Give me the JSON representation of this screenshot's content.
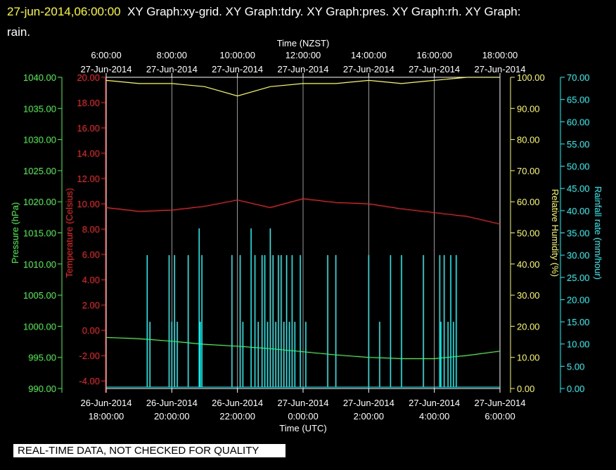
{
  "header": {
    "timestamp": "27-jun-2014,06:00:00",
    "line1": "XY Graph:xy-grid.  XY Graph:tdry.  XY Graph:pres.  XY Graph:rh.  XY Graph:",
    "line2": "rain."
  },
  "footer": {
    "notice": "REAL-TIME DATA, NOT CHECKED FOR QUALITY"
  },
  "colors": {
    "pressure": "#33ff33",
    "temperature": "#ff1a1a",
    "humidity": "#ffff33",
    "rainfall": "#00ffff",
    "grid": "#ffffff",
    "background": "#000000"
  },
  "chart_data": {
    "type": "line",
    "grid": true,
    "top_axis": {
      "title": "Time (NZST)",
      "ticks": [
        {
          "time": "6:00:00",
          "date": "27-Jun-2014"
        },
        {
          "time": "8:00:00",
          "date": "27-Jun-2014"
        },
        {
          "time": "10:00:00",
          "date": "27-Jun-2014"
        },
        {
          "time": "12:00:00",
          "date": "27-Jun-2014"
        },
        {
          "time": "14:00:00",
          "date": "27-Jun-2014"
        },
        {
          "time": "16:00:00",
          "date": "27-Jun-2014"
        },
        {
          "time": "18:00:00",
          "date": "27-Jun-2014"
        }
      ]
    },
    "bottom_axis": {
      "title": "Time (UTC)",
      "range": [
        "2014-06-26 18:00",
        "2014-06-27 06:00"
      ],
      "ticks": [
        {
          "date": "26-Jun-2014",
          "time": "18:00:00"
        },
        {
          "date": "26-Jun-2014",
          "time": "20:00:00"
        },
        {
          "date": "26-Jun-2014",
          "time": "22:00:00"
        },
        {
          "date": "27-Jun-2014",
          "time": "0:00:00"
        },
        {
          "date": "27-Jun-2014",
          "time": "2:00:00"
        },
        {
          "date": "27-Jun-2014",
          "time": "4:00:00"
        },
        {
          "date": "27-Jun-2014",
          "time": "6:00:00"
        }
      ]
    },
    "axes": {
      "pressure": {
        "label": "Pressure (hPa)",
        "range": [
          990,
          1040
        ],
        "ticks": [
          "990.00",
          "995.00",
          "1000.00",
          "1005.00",
          "1010.00",
          "1015.00",
          "1020.00",
          "1025.00",
          "1030.00",
          "1035.00",
          "1040.00"
        ]
      },
      "temperature": {
        "label": "Temperature (Celsius)",
        "range": [
          -4.6,
          20
        ],
        "ticks": [
          "-4.00",
          "-2.00",
          "0.00",
          "2.00",
          "4.00",
          "6.00",
          "8.00",
          "10.00",
          "12.00",
          "14.00",
          "16.00",
          "18.00",
          "20.00"
        ]
      },
      "humidity": {
        "label": "Relative Humidity (%)",
        "range": [
          0,
          100
        ],
        "ticks": [
          "0.00",
          "10.00",
          "20.00",
          "30.00",
          "40.00",
          "50.00",
          "60.00",
          "70.00",
          "80.00",
          "90.00",
          "100.00"
        ]
      },
      "rainfall": {
        "label": "Rainfall rate (mm/hour)",
        "range": [
          0,
          70
        ],
        "ticks": [
          "0.00",
          "5.00",
          "10.00",
          "15.00",
          "20.00",
          "25.00",
          "30.00",
          "35.00",
          "40.00",
          "45.00",
          "50.00",
          "55.00",
          "60.00",
          "65.00",
          "70.00"
        ]
      }
    },
    "series": [
      {
        "name": "pres",
        "axis": "pressure",
        "x": [
          "2014-06-26 18:00",
          "2014-06-26 19:00",
          "2014-06-26 20:00",
          "2014-06-26 21:00",
          "2014-06-26 22:00",
          "2014-06-26 23:00",
          "2014-06-27 00:00",
          "2014-06-27 01:00",
          "2014-06-27 02:00",
          "2014-06-27 03:00",
          "2014-06-27 04:00",
          "2014-06-27 05:00",
          "2014-06-27 06:00"
        ],
        "values": [
          998.2,
          998.0,
          997.6,
          997.1,
          996.8,
          996.4,
          995.9,
          995.4,
          995.0,
          994.8,
          994.8,
          995.3,
          996.0
        ]
      },
      {
        "name": "tdry",
        "axis": "temperature",
        "x": [
          "2014-06-26 18:00",
          "2014-06-26 19:00",
          "2014-06-26 20:00",
          "2014-06-26 21:00",
          "2014-06-26 22:00",
          "2014-06-26 23:00",
          "2014-06-27 00:00",
          "2014-06-27 01:00",
          "2014-06-27 02:00",
          "2014-06-27 03:00",
          "2014-06-27 04:00",
          "2014-06-27 05:00",
          "2014-06-27 06:00"
        ],
        "values": [
          9.7,
          9.4,
          9.5,
          9.8,
          10.3,
          9.7,
          10.4,
          10.1,
          10.0,
          9.6,
          9.3,
          9.0,
          8.4
        ]
      },
      {
        "name": "rh",
        "axis": "humidity",
        "x": [
          "2014-06-26 18:00",
          "2014-06-26 19:00",
          "2014-06-26 20:00",
          "2014-06-26 21:00",
          "2014-06-26 22:00",
          "2014-06-26 23:00",
          "2014-06-27 00:00",
          "2014-06-27 01:00",
          "2014-06-27 02:00",
          "2014-06-27 03:00",
          "2014-06-27 04:00",
          "2014-06-27 05:00",
          "2014-06-27 06:00"
        ],
        "values": [
          99,
          98,
          98,
          97,
          94,
          97,
          98,
          98,
          99,
          98,
          99,
          100,
          100
        ]
      },
      {
        "name": "rain",
        "axis": "rainfall",
        "kind": "impulse",
        "x": [
          "19:15",
          "19:20",
          "19:55",
          "20:00",
          "20:05",
          "20:10",
          "20:30",
          "20:50",
          "20:52",
          "20:55",
          "21:50",
          "22:05",
          "22:10",
          "22:25",
          "22:32",
          "22:38",
          "22:45",
          "22:50",
          "22:55",
          "23:00",
          "23:05",
          "23:10",
          "23:15",
          "23:20",
          "23:25",
          "23:30",
          "23:35",
          "23:40",
          "23:45",
          "23:55",
          "00:05",
          "00:45",
          "01:00",
          "02:00",
          "02:20",
          "02:40",
          "03:00",
          "03:40",
          "04:10",
          "04:12",
          "04:18",
          "04:25",
          "04:30",
          "04:35",
          "04:40"
        ],
        "values": [
          30,
          15,
          30,
          15,
          30,
          15,
          30,
          36,
          15,
          30,
          30,
          30,
          15,
          36,
          30,
          15,
          30,
          30,
          15,
          36,
          30,
          15,
          30,
          30,
          15,
          30,
          15,
          30,
          15,
          30,
          15,
          30,
          30,
          30,
          15,
          30,
          30,
          30,
          30,
          15,
          30,
          15,
          30,
          15,
          30
        ]
      }
    ]
  }
}
